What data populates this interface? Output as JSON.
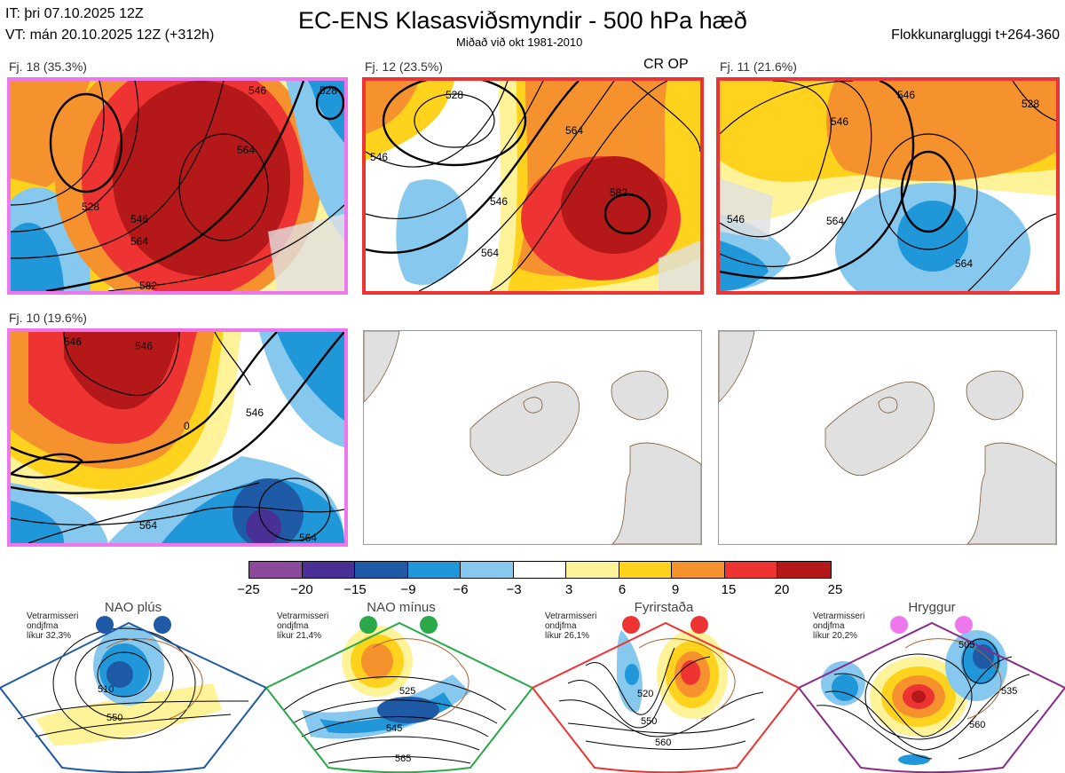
{
  "header": {
    "it_line": "IT: þri 07.10.2025 12Z",
    "vt_line": "VT: mán 20.10.2025 12Z  (+312h)",
    "title": "EC-ENS Klasasviðsmyndir - 500 hPa hæð",
    "subtitle": "Miðað við okt 1981-2010",
    "window": "Flokkunargluggi t+264-360"
  },
  "panels": [
    {
      "label": "Fj. 18 (35.3%)",
      "border_color": "#ee77ee",
      "contours": [
        "546",
        "528",
        "564",
        "582",
        "528",
        "564",
        "546"
      ]
    },
    {
      "label": "Fj. 12 (23.5%)",
      "border_color": "#ee3333",
      "badge": "CR OP",
      "contours": [
        "528",
        "546",
        "564",
        "546",
        "564",
        "582"
      ]
    },
    {
      "label": "Fj. 11 (21.6%)",
      "border_color": "#ee3333",
      "contours": [
        "546",
        "546",
        "528",
        "546",
        "564",
        "564"
      ]
    },
    {
      "label": "Fj. 10 (19.6%)",
      "border_color": "#ee77ee",
      "contours": [
        "546",
        "546",
        "0",
        "546",
        "564",
        "564"
      ]
    }
  ],
  "colorbar": {
    "colors": [
      "#8c4a9c",
      "#4a2f94",
      "#1f5aa6",
      "#1f97d8",
      "#86c8ee",
      "#ffffff",
      "#fff39a",
      "#ffd21e",
      "#f5922e",
      "#ee3333",
      "#b51818"
    ],
    "ticks": [
      "−25",
      "−20",
      "−15",
      "−9",
      "−6",
      "−3",
      "3",
      "6",
      "9",
      "15",
      "20",
      "25"
    ]
  },
  "regimes": [
    {
      "name": "NAO plús",
      "note": [
        "Vetrarmisseri",
        "ondjfma",
        "líkur 32,3%"
      ],
      "color": "#1f5aa6",
      "dot_color": "#1f5aa6",
      "labels": [
        "510",
        "550"
      ]
    },
    {
      "name": "NAO mínus",
      "note": [
        "Vetrarmisseri",
        "ondjfma",
        "líkur 21,4%"
      ],
      "color": "#2aa84a",
      "dot_color": "#2aa84a",
      "labels": [
        "525",
        "545",
        "565"
      ]
    },
    {
      "name": "Fyrirstaða",
      "note": [
        "Vetrarmisseri",
        "ondjfma",
        "líkur 26,1%"
      ],
      "color": "#ee3333",
      "dot_color": "#ee3333",
      "labels": [
        "520",
        "550",
        "560"
      ]
    },
    {
      "name": "Hryggur",
      "note": [
        "Vetrarmisseri",
        "ondjfma",
        "líkur 20,2%"
      ],
      "color": "#8a2b8a",
      "dot_color": "#ee77ee",
      "labels": [
        "505",
        "535",
        "560"
      ]
    }
  ]
}
